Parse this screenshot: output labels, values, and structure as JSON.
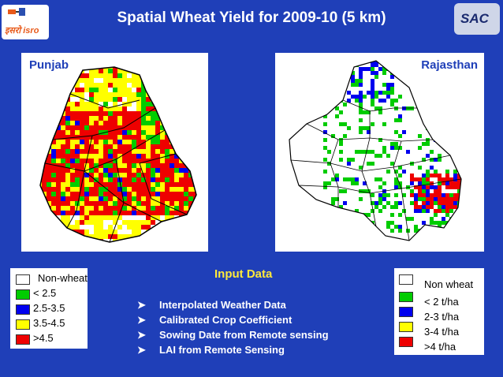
{
  "title": "Spatial Wheat Yield for 2009-10 (5 km)",
  "logos": {
    "left_text": "इसरो isro",
    "right_text": "SAC"
  },
  "maps": {
    "left_label": "Punjab",
    "right_label": "Rajasthan"
  },
  "legend_left": {
    "items": [
      {
        "label": "Non-wheat",
        "color": "#ffffff"
      },
      {
        "label": "< 2.5",
        "color": "#00cc00"
      },
      {
        "label": "2.5-3.5",
        "color": "#0000ee"
      },
      {
        "label": "3.5-4.5",
        "color": "#ffff00"
      },
      {
        "label": ">4.5",
        "color": "#ee0000"
      }
    ]
  },
  "legend_right": {
    "items": [
      {
        "label": "Non wheat",
        "color": "#ffffff"
      },
      {
        "label": "< 2 t/ha",
        "color": "#00cc00"
      },
      {
        "label": "2-3 t/ha",
        "color": "#0000ee"
      },
      {
        "label": "3-4 t/ha",
        "color": "#ffff00"
      },
      {
        "label": ">4 t/ha",
        "color": "#ee0000"
      }
    ]
  },
  "input_data": {
    "heading": "Input Data",
    "items": [
      "Interpolated Weather Data",
      "Calibrated Crop Coefficient",
      "Sowing Date from Remote sensing",
      "LAI from Remote Sensing"
    ]
  }
}
